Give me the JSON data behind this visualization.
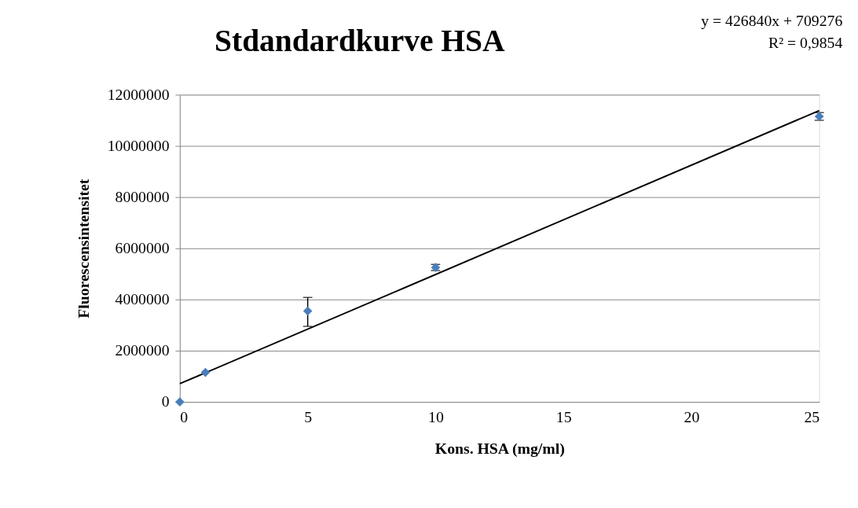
{
  "chart_data": {
    "type": "scatter",
    "title": "Stdandardkurve HSA",
    "xlabel": "Kons. HSA (mg/ml)",
    "ylabel": "Fluorescensintensitet",
    "annotations": [
      "y = 426840x + 709276",
      "R² = 0,9854"
    ],
    "series": [
      {
        "color": "#4a7ebb",
        "x": [
          0,
          1,
          5,
          10,
          25
        ],
        "values": [
          0,
          1150000,
          3550000,
          5250000,
          11150000
        ],
        "errors": [
          null,
          null,
          [
            2950000,
            4080000
          ],
          120000,
          150000
        ],
        "marker": "diamond"
      },
      {
        "type": "line",
        "color": "#000000",
        "x": [
          0,
          25
        ],
        "values": [
          710000,
          11380000
        ],
        "line_style": "solid"
      }
    ],
    "xlim": [
      0,
      25
    ],
    "xticks": [
      0,
      5,
      10,
      15,
      20,
      25
    ],
    "ylim": [
      0,
      12000000
    ],
    "yticks": [
      0,
      2000000,
      4000000,
      6000000,
      8000000,
      10000000,
      12000000
    ],
    "grid": "y"
  }
}
